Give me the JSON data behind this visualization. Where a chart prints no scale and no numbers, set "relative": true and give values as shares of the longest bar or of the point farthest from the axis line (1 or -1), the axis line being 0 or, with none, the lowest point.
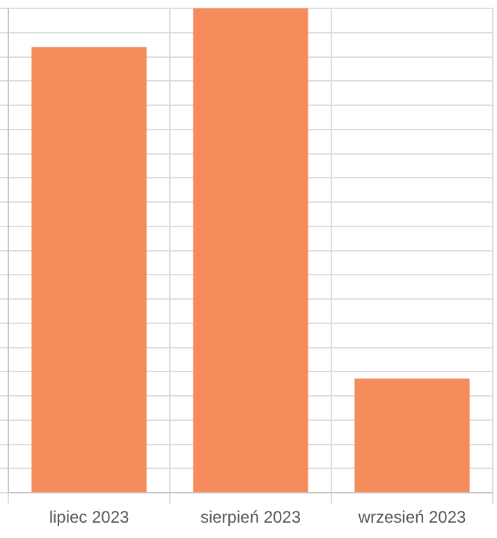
{
  "chart_data": {
    "type": "bar",
    "categories": [
      "lipiec 2023",
      "sierpień 2023",
      "wrzesień 2023"
    ],
    "values": [
      0.92,
      1,
      0.236
    ],
    "color": "#f68c5b",
    "relative": true,
    "grid": true,
    "legend": false
  }
}
